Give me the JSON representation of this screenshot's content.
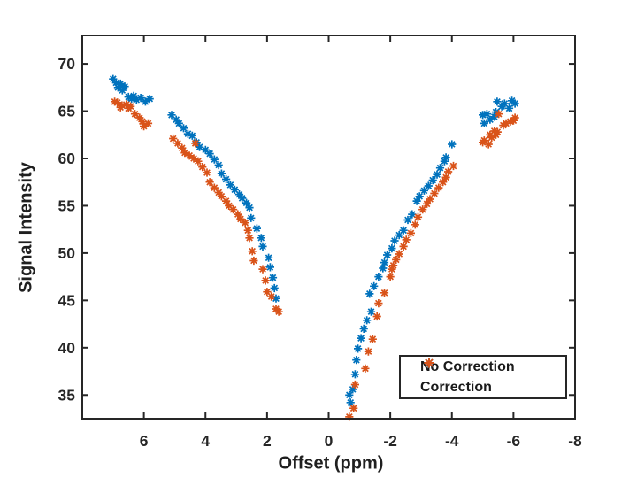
{
  "figure": {
    "background": "#ffffff",
    "axis_color": "#262626",
    "tick_label_color": "#262626"
  },
  "chart_data": {
    "type": "scatter",
    "title": "",
    "xlabel": "Offset (ppm)",
    "ylabel": "Signal Intensity",
    "xlim": [
      8,
      -8
    ],
    "ylim": [
      32.5,
      73
    ],
    "x_axis_reversed": true,
    "grid": false,
    "x_ticks": [
      6,
      4,
      2,
      0,
      -2,
      -4,
      -6,
      -8
    ],
    "y_ticks": [
      35,
      40,
      45,
      50,
      55,
      60,
      65,
      70
    ],
    "legend": {
      "position": "south-east",
      "border": true,
      "entries": [
        {
          "label": "No Correction",
          "color": "#0072BD",
          "marker": "asterisk"
        },
        {
          "label": "Correction",
          "color": "#D95319",
          "marker": "asterisk"
        }
      ]
    },
    "series": [
      {
        "name": "No Correction",
        "color": "#0072BD",
        "marker": "asterisk",
        "points": [
          [
            7.0,
            68.4
          ],
          [
            6.9,
            68.0
          ],
          [
            6.84,
            67.5
          ],
          [
            6.76,
            67.9
          ],
          [
            6.7,
            67.2
          ],
          [
            6.62,
            67.6
          ],
          [
            6.5,
            66.5
          ],
          [
            6.4,
            66.3
          ],
          [
            6.33,
            66.6
          ],
          [
            6.24,
            66.2
          ],
          [
            6.1,
            66.4
          ],
          [
            5.95,
            66.0
          ],
          [
            5.81,
            66.3
          ],
          [
            5.1,
            64.6
          ],
          [
            4.95,
            64.1
          ],
          [
            4.86,
            63.7
          ],
          [
            4.71,
            63.2
          ],
          [
            4.57,
            62.6
          ],
          [
            4.43,
            62.4
          ],
          [
            4.29,
            61.7
          ],
          [
            4.19,
            61.2
          ],
          [
            4.0,
            60.9
          ],
          [
            3.86,
            60.5
          ],
          [
            3.71,
            59.9
          ],
          [
            3.57,
            59.3
          ],
          [
            3.48,
            58.4
          ],
          [
            3.33,
            57.8
          ],
          [
            3.19,
            57.2
          ],
          [
            3.05,
            56.7
          ],
          [
            2.9,
            56.2
          ],
          [
            2.81,
            55.8
          ],
          [
            2.67,
            55.3
          ],
          [
            2.57,
            54.8
          ],
          [
            2.52,
            53.7
          ],
          [
            2.33,
            52.6
          ],
          [
            2.19,
            51.6
          ],
          [
            2.14,
            50.7
          ],
          [
            1.95,
            49.5
          ],
          [
            1.9,
            48.5
          ],
          [
            1.81,
            47.4
          ],
          [
            1.76,
            46.3
          ],
          [
            1.71,
            45.2
          ],
          [
            -0.71,
            34.2
          ],
          [
            -0.67,
            35.0
          ],
          [
            -0.78,
            35.6
          ],
          [
            -0.86,
            37.2
          ],
          [
            -0.9,
            38.7
          ],
          [
            -0.95,
            39.9
          ],
          [
            -1.05,
            41.0
          ],
          [
            -1.14,
            42.0
          ],
          [
            -1.24,
            42.9
          ],
          [
            -1.38,
            43.8
          ],
          [
            -1.33,
            45.7
          ],
          [
            -1.47,
            46.5
          ],
          [
            -1.62,
            47.5
          ],
          [
            -1.76,
            48.4
          ],
          [
            -1.81,
            49.0
          ],
          [
            -1.9,
            49.8
          ],
          [
            -2.05,
            50.5
          ],
          [
            -2.14,
            51.3
          ],
          [
            -2.29,
            51.9
          ],
          [
            -2.43,
            52.4
          ],
          [
            -2.57,
            53.5
          ],
          [
            -2.71,
            54.1
          ],
          [
            -2.86,
            55.5
          ],
          [
            -2.95,
            56.0
          ],
          [
            -3.1,
            56.6
          ],
          [
            -3.24,
            57.1
          ],
          [
            -3.38,
            57.7
          ],
          [
            -3.52,
            58.3
          ],
          [
            -3.62,
            59.0
          ],
          [
            -3.76,
            59.7
          ],
          [
            -3.81,
            60.1
          ],
          [
            -4.0,
            61.5
          ],
          [
            -5.0,
            64.6
          ],
          [
            -5.05,
            63.7
          ],
          [
            -5.14,
            64.7
          ],
          [
            -5.24,
            64.1
          ],
          [
            -5.38,
            64.4
          ],
          [
            -5.43,
            64.9
          ],
          [
            -5.47,
            66.0
          ],
          [
            -5.62,
            65.5
          ],
          [
            -5.71,
            65.8
          ],
          [
            -5.86,
            65.3
          ],
          [
            -5.95,
            66.1
          ],
          [
            -6.05,
            65.8
          ]
        ]
      },
      {
        "name": "Correction",
        "color": "#D95319",
        "marker": "asterisk",
        "points": [
          [
            6.95,
            66.0
          ],
          [
            6.86,
            65.9
          ],
          [
            6.76,
            65.4
          ],
          [
            6.71,
            65.6
          ],
          [
            6.57,
            65.7
          ],
          [
            6.5,
            65.3
          ],
          [
            6.43,
            65.5
          ],
          [
            6.29,
            64.7
          ],
          [
            6.14,
            64.3
          ],
          [
            6.05,
            63.9
          ],
          [
            6.0,
            63.4
          ],
          [
            5.86,
            63.7
          ],
          [
            5.05,
            62.1
          ],
          [
            4.9,
            61.6
          ],
          [
            4.76,
            61.1
          ],
          [
            4.67,
            60.6
          ],
          [
            4.52,
            60.3
          ],
          [
            4.38,
            60.0
          ],
          [
            4.33,
            61.6
          ],
          [
            4.24,
            59.7
          ],
          [
            4.1,
            59.1
          ],
          [
            3.95,
            58.5
          ],
          [
            3.86,
            57.5
          ],
          [
            3.71,
            56.9
          ],
          [
            3.57,
            56.4
          ],
          [
            3.48,
            56.0
          ],
          [
            3.33,
            55.5
          ],
          [
            3.24,
            55.0
          ],
          [
            3.1,
            54.6
          ],
          [
            2.95,
            54.1
          ],
          [
            2.86,
            53.6
          ],
          [
            2.71,
            53.2
          ],
          [
            2.62,
            52.4
          ],
          [
            2.57,
            51.6
          ],
          [
            2.48,
            50.2
          ],
          [
            2.43,
            49.2
          ],
          [
            2.14,
            48.3
          ],
          [
            2.05,
            47.1
          ],
          [
            2.0,
            45.9
          ],
          [
            1.86,
            45.4
          ],
          [
            1.71,
            44.1
          ],
          [
            1.62,
            43.8
          ],
          [
            -0.67,
            32.7
          ],
          [
            -0.81,
            33.6
          ],
          [
            -0.86,
            36.1
          ],
          [
            -1.19,
            37.8
          ],
          [
            -1.29,
            39.6
          ],
          [
            -1.43,
            40.9
          ],
          [
            -1.57,
            43.3
          ],
          [
            -1.62,
            44.7
          ],
          [
            -1.81,
            45.8
          ],
          [
            -2.0,
            47.5
          ],
          [
            -2.05,
            48.3
          ],
          [
            -2.1,
            48.7
          ],
          [
            -2.19,
            49.3
          ],
          [
            -2.29,
            49.9
          ],
          [
            -2.43,
            50.7
          ],
          [
            -2.52,
            51.4
          ],
          [
            -2.67,
            52.1
          ],
          [
            -2.81,
            53.0
          ],
          [
            -2.9,
            53.8
          ],
          [
            -3.05,
            54.6
          ],
          [
            -3.19,
            55.2
          ],
          [
            -3.29,
            55.7
          ],
          [
            -3.43,
            56.3
          ],
          [
            -3.57,
            56.9
          ],
          [
            -3.71,
            57.5
          ],
          [
            -3.81,
            58.0
          ],
          [
            -3.88,
            58.6
          ],
          [
            -4.05,
            59.2
          ],
          [
            -5.0,
            61.7
          ],
          [
            -5.05,
            61.9
          ],
          [
            -5.19,
            61.5
          ],
          [
            -5.24,
            62.5
          ],
          [
            -5.29,
            62.2
          ],
          [
            -5.38,
            62.9
          ],
          [
            -5.43,
            62.5
          ],
          [
            -5.48,
            62.8
          ],
          [
            -5.52,
            64.7
          ],
          [
            -5.67,
            63.5
          ],
          [
            -5.76,
            63.7
          ],
          [
            -5.9,
            63.9
          ],
          [
            -6.0,
            64.0
          ],
          [
            -6.05,
            64.3
          ]
        ]
      }
    ]
  }
}
